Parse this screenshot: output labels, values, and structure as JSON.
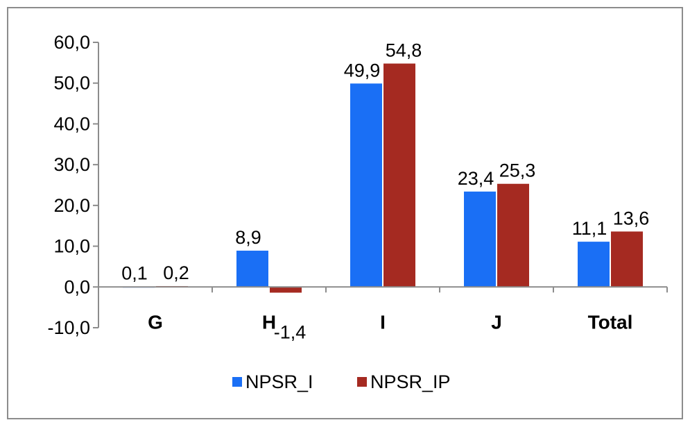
{
  "chart_data": {
    "type": "bar",
    "categories": [
      "G",
      "H",
      "I",
      "J",
      "Total"
    ],
    "series": [
      {
        "name": "NPSR_I",
        "color": "#1a6ff5",
        "values": [
          0.1,
          8.9,
          49.9,
          23.4,
          11.1
        ],
        "labels": [
          "0,1",
          "8,9",
          "49,9",
          "23,4",
          "11,1"
        ]
      },
      {
        "name": "NPSR_IP",
        "color": "#a52a21",
        "values": [
          0.2,
          -1.4,
          54.8,
          25.3,
          13.6
        ],
        "labels": [
          "0,2",
          "-1,4",
          "54,8",
          "25,3",
          "13,6"
        ]
      }
    ],
    "yticks": [
      -10,
      0,
      10,
      20,
      30,
      40,
      50,
      60
    ],
    "ytick_labels": [
      "-10,0",
      "0,0",
      "10,0",
      "20,0",
      "30,0",
      "40,0",
      "50,0",
      "60,0"
    ],
    "ylim": [
      -10,
      60
    ],
    "grid": false,
    "legend_position": "bottom",
    "title": "",
    "xlabel": "",
    "ylabel": ""
  }
}
